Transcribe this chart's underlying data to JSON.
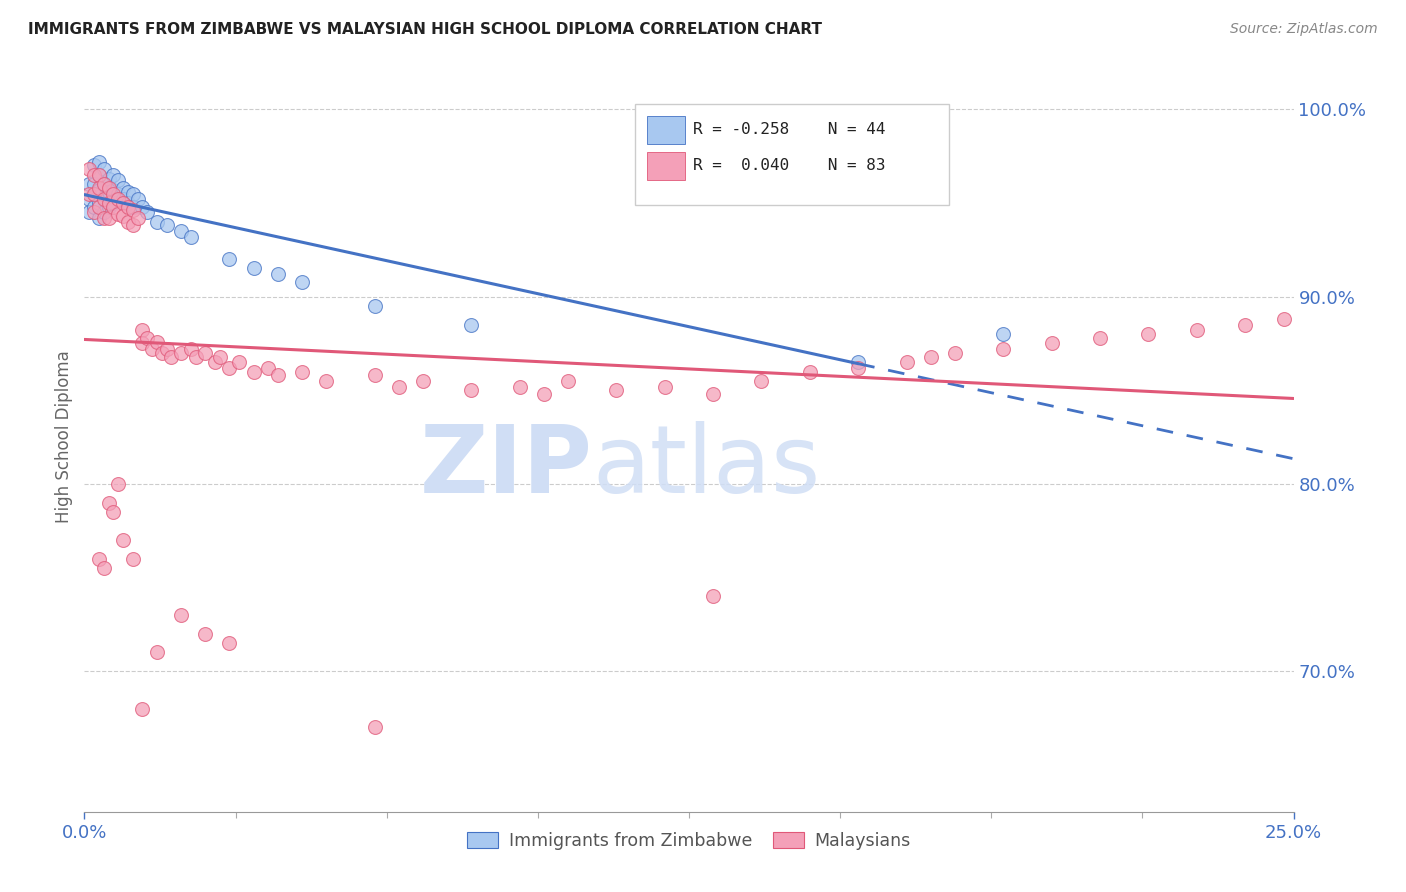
{
  "title": "IMMIGRANTS FROM ZIMBABWE VS MALAYSIAN HIGH SCHOOL DIPLOMA CORRELATION CHART",
  "source": "Source: ZipAtlas.com",
  "ylabel": "High School Diploma",
  "xlim": [
    0.0,
    0.25
  ],
  "ylim": [
    0.625,
    1.025
  ],
  "ytick_vals": [
    0.7,
    0.8,
    0.9,
    1.0
  ],
  "ytick_labels": [
    "70.0%",
    "80.0%",
    "90.0%",
    "100.0%"
  ],
  "legend_r_blue": "R = -0.258",
  "legend_n_blue": "N = 44",
  "legend_r_pink": "R =  0.040",
  "legend_n_pink": "N = 83",
  "legend_label_blue": "Immigrants from Zimbabwe",
  "legend_label_pink": "Malaysians",
  "color_blue": "#A8C8F0",
  "color_pink": "#F4A0B8",
  "color_line_blue": "#4472C4",
  "color_line_pink": "#E05878",
  "color_axis_text": "#4472C4",
  "watermark_color": "#D0DEF5",
  "blue_x": [
    0.001,
    0.001,
    0.001,
    0.002,
    0.002,
    0.002,
    0.003,
    0.003,
    0.003,
    0.003,
    0.003,
    0.004,
    0.004,
    0.004,
    0.004,
    0.005,
    0.005,
    0.005,
    0.006,
    0.006,
    0.006,
    0.007,
    0.007,
    0.008,
    0.008,
    0.009,
    0.009,
    0.01,
    0.01,
    0.011,
    0.012,
    0.013,
    0.015,
    0.017,
    0.02,
    0.022,
    0.03,
    0.035,
    0.04,
    0.045,
    0.06,
    0.08,
    0.16,
    0.19
  ],
  "blue_y": [
    0.96,
    0.952,
    0.945,
    0.97,
    0.96,
    0.948,
    0.972,
    0.965,
    0.957,
    0.95,
    0.942,
    0.968,
    0.96,
    0.953,
    0.945,
    0.963,
    0.956,
    0.948,
    0.965,
    0.957,
    0.95,
    0.962,
    0.955,
    0.958,
    0.952,
    0.956,
    0.95,
    0.955,
    0.948,
    0.952,
    0.948,
    0.945,
    0.94,
    0.938,
    0.935,
    0.932,
    0.92,
    0.915,
    0.912,
    0.908,
    0.895,
    0.885,
    0.865,
    0.88
  ],
  "pink_x": [
    0.001,
    0.001,
    0.002,
    0.002,
    0.002,
    0.003,
    0.003,
    0.003,
    0.004,
    0.004,
    0.004,
    0.005,
    0.005,
    0.005,
    0.006,
    0.006,
    0.007,
    0.007,
    0.008,
    0.008,
    0.009,
    0.009,
    0.01,
    0.01,
    0.011,
    0.012,
    0.012,
    0.013,
    0.014,
    0.015,
    0.016,
    0.017,
    0.018,
    0.02,
    0.022,
    0.023,
    0.025,
    0.027,
    0.028,
    0.03,
    0.032,
    0.035,
    0.038,
    0.04,
    0.045,
    0.05,
    0.06,
    0.065,
    0.07,
    0.08,
    0.09,
    0.095,
    0.1,
    0.11,
    0.12,
    0.13,
    0.14,
    0.15,
    0.16,
    0.17,
    0.175,
    0.18,
    0.19,
    0.2,
    0.21,
    0.22,
    0.23,
    0.24,
    0.248,
    0.005,
    0.006,
    0.007,
    0.003,
    0.004,
    0.008,
    0.01,
    0.012,
    0.015,
    0.02,
    0.025,
    0.03,
    0.06,
    0.13
  ],
  "pink_y": [
    0.968,
    0.955,
    0.965,
    0.955,
    0.945,
    0.965,
    0.958,
    0.948,
    0.96,
    0.952,
    0.942,
    0.958,
    0.95,
    0.942,
    0.955,
    0.948,
    0.952,
    0.944,
    0.95,
    0.943,
    0.948,
    0.94,
    0.946,
    0.938,
    0.942,
    0.882,
    0.875,
    0.878,
    0.872,
    0.876,
    0.87,
    0.872,
    0.868,
    0.87,
    0.872,
    0.868,
    0.87,
    0.865,
    0.868,
    0.862,
    0.865,
    0.86,
    0.862,
    0.858,
    0.86,
    0.855,
    0.858,
    0.852,
    0.855,
    0.85,
    0.852,
    0.848,
    0.855,
    0.85,
    0.852,
    0.848,
    0.855,
    0.86,
    0.862,
    0.865,
    0.868,
    0.87,
    0.872,
    0.875,
    0.878,
    0.88,
    0.882,
    0.885,
    0.888,
    0.79,
    0.785,
    0.8,
    0.76,
    0.755,
    0.77,
    0.76,
    0.68,
    0.71,
    0.73,
    0.72,
    0.715,
    0.67,
    0.74
  ]
}
